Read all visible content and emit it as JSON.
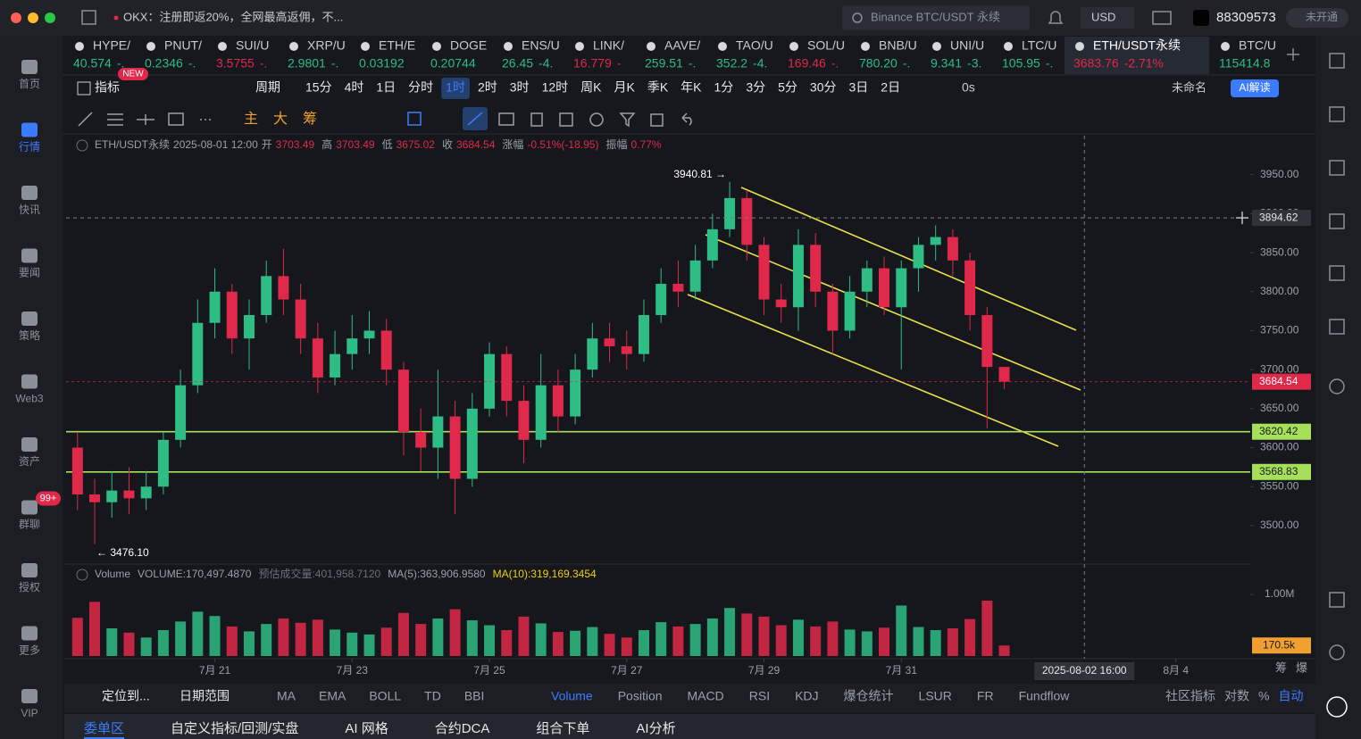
{
  "topbar": {
    "notice": "OKX：注册即返20%，全网最高返佣，不...",
    "search": "Binance BTC/USDT 永续",
    "currency": "USD",
    "account": "88309573",
    "badge": "未开通"
  },
  "sidebar": [
    {
      "label": "首页"
    },
    {
      "label": "行情",
      "active": true
    },
    {
      "label": "快讯"
    },
    {
      "label": "要闻"
    },
    {
      "label": "策略"
    },
    {
      "label": "Web3"
    },
    {
      "label": "资产"
    },
    {
      "label": "群聊",
      "badge": "99+"
    },
    {
      "label": "授权"
    },
    {
      "label": "更多"
    },
    {
      "label": "VIP"
    }
  ],
  "tickers": [
    {
      "name": "HYPE/",
      "price": "40.574",
      "change": "-.",
      "color": "#2ebd85"
    },
    {
      "name": "PNUT/",
      "price": "0.2346",
      "change": "-.",
      "color": "#2ebd85"
    },
    {
      "name": "SUI/U",
      "price": "3.5755",
      "change": "-.",
      "color": "#e0294a"
    },
    {
      "name": "XRP/U",
      "price": "2.9801",
      "change": "-.",
      "color": "#2ebd85"
    },
    {
      "name": "ETH/E",
      "price": "0.03192",
      "color": "#2ebd85"
    },
    {
      "name": "DOGE",
      "price": "0.20744",
      "color": "#2ebd85"
    },
    {
      "name": "ENS/U",
      "price": "26.45",
      "change": "-4.",
      "color": "#2ebd85"
    },
    {
      "name": "LINK/",
      "price": "16.779",
      "change": "-",
      "color": "#e0294a"
    },
    {
      "name": "AAVE/",
      "price": "259.51",
      "change": "-.",
      "color": "#2ebd85"
    },
    {
      "name": "TAO/U",
      "price": "352.2",
      "change": "-4.",
      "color": "#2ebd85"
    },
    {
      "name": "SOL/U",
      "price": "169.46",
      "change": "-.",
      "color": "#e0294a"
    },
    {
      "name": "BNB/U",
      "price": "780.20",
      "change": "-.",
      "color": "#2ebd85"
    },
    {
      "name": "UNI/U",
      "price": "9.341",
      "change": "-3.",
      "color": "#2ebd85"
    },
    {
      "name": "LTC/U",
      "price": "105.95",
      "change": "-.",
      "color": "#2ebd85"
    },
    {
      "name": "ETH/USDT永续",
      "price": "3683.76",
      "change": "-2.71%",
      "color": "#e0294a",
      "active": true
    },
    {
      "name": "BTC/U",
      "price": "115414.8",
      "color": "#2ebd85"
    }
  ],
  "toolbar": {
    "indicator": "指标",
    "new": "NEW",
    "period": "周期",
    "periods": [
      "15分",
      "4时",
      "1日",
      "分时",
      "1时",
      "2时",
      "3时",
      "12时",
      "周K",
      "月K",
      "季K",
      "年K",
      "1分",
      "3分",
      "5分",
      "30分",
      "3日",
      "2日"
    ],
    "active_period": "1时",
    "countdown": "0s",
    "layout": "未命名",
    "ai": "AI解读",
    "tools": [
      "主",
      "大",
      "筹"
    ]
  },
  "info": {
    "symbol": "ETH/USDT永续",
    "labels": [
      "开",
      "高",
      "低",
      "收",
      "涨幅",
      "振幅"
    ],
    "change": "-0.51%(-18.95)",
    "amplitude": "0.77%"
  },
  "volume_legend": [
    "Volume",
    "VOLUME:170,497.4870",
    "预估成交量:401,958.7120",
    "MA(5):363,906.9580",
    "MA(10):319,169.3454"
  ],
  "chart_data": {
    "type": "candlestick",
    "x": [
      "2025-07-19 00:00",
      "2025-07-19 06:00",
      "2025-07-19 12:00",
      "2025-07-19 18:00",
      "2025-07-20 00:00",
      "2025-07-20 06:00",
      "2025-07-20 12:00",
      "2025-07-20 18:00",
      "2025-07-21 00:00",
      "2025-07-21 06:00",
      "2025-07-21 12:00",
      "2025-07-21 18:00",
      "2025-07-22 00:00",
      "2025-07-22 06:00",
      "2025-07-22 12:00",
      "2025-07-22 18:00",
      "2025-07-23 00:00",
      "2025-07-23 06:00",
      "2025-07-23 12:00",
      "2025-07-23 18:00",
      "2025-07-24 00:00",
      "2025-07-24 06:00",
      "2025-07-24 12:00",
      "2025-07-24 18:00",
      "2025-07-25 00:00",
      "2025-07-25 06:00",
      "2025-07-25 12:00",
      "2025-07-25 18:00",
      "2025-07-26 00:00",
      "2025-07-26 06:00",
      "2025-07-26 12:00",
      "2025-07-26 18:00",
      "2025-07-27 00:00",
      "2025-07-27 06:00",
      "2025-07-27 12:00",
      "2025-07-27 18:00",
      "2025-07-28 00:00",
      "2025-07-28 06:00",
      "2025-07-28 12:00",
      "2025-07-28 18:00",
      "2025-07-29 00:00",
      "2025-07-29 06:00",
      "2025-07-29 12:00",
      "2025-07-29 18:00",
      "2025-07-30 00:00",
      "2025-07-30 06:00",
      "2025-07-30 12:00",
      "2025-07-30 18:00",
      "2025-07-31 00:00",
      "2025-07-31 06:00",
      "2025-07-31 12:00",
      "2025-07-31 18:00",
      "2025-08-01 00:00",
      "2025-08-01 06:00",
      "2025-08-01 12:00"
    ],
    "open": [
      3600,
      3540,
      3530,
      3545,
      3535,
      3550,
      3610,
      3680,
      3760,
      3800,
      3740,
      3770,
      3820,
      3790,
      3740,
      3690,
      3720,
      3740,
      3750,
      3700,
      3620,
      3600,
      3640,
      3560,
      3650,
      3720,
      3660,
      3610,
      3680,
      3640,
      3700,
      3740,
      3730,
      3720,
      3770,
      3810,
      3800,
      3840,
      3880,
      3920,
      3860,
      3790,
      3780,
      3860,
      3800,
      3750,
      3800,
      3830,
      3780,
      3830,
      3860,
      3870,
      3840,
      3770,
      3703.49
    ],
    "high": [
      3620,
      3560,
      3570,
      3575,
      3570,
      3620,
      3700,
      3790,
      3830,
      3810,
      3790,
      3840,
      3855,
      3810,
      3760,
      3750,
      3770,
      3775,
      3765,
      3710,
      3650,
      3700,
      3660,
      3670,
      3735,
      3730,
      3680,
      3720,
      3700,
      3720,
      3760,
      3760,
      3750,
      3790,
      3830,
      3840,
      3860,
      3900,
      3940.81,
      3930,
      3870,
      3810,
      3880,
      3875,
      3810,
      3820,
      3840,
      3845,
      3840,
      3870,
      3885,
      3880,
      3850,
      3780,
      3703.49
    ],
    "low": [
      3520,
      3476.1,
      3510,
      3515,
      3520,
      3540,
      3600,
      3670,
      3740,
      3720,
      3700,
      3760,
      3770,
      3720,
      3670,
      3680,
      3700,
      3720,
      3680,
      3590,
      3570,
      3560,
      3515,
      3550,
      3640,
      3640,
      3580,
      3600,
      3620,
      3630,
      3690,
      3710,
      3700,
      3710,
      3760,
      3780,
      3790,
      3830,
      3870,
      3840,
      3770,
      3760,
      3750,
      3780,
      3720,
      3740,
      3780,
      3770,
      3700,
      3800,
      3840,
      3820,
      3750,
      3625,
      3675.02
    ],
    "close": [
      3540,
      3530,
      3545,
      3535,
      3550,
      3610,
      3680,
      3760,
      3800,
      3740,
      3770,
      3820,
      3790,
      3740,
      3690,
      3720,
      3740,
      3750,
      3700,
      3620,
      3600,
      3640,
      3560,
      3650,
      3720,
      3660,
      3610,
      3680,
      3640,
      3700,
      3740,
      3730,
      3720,
      3770,
      3810,
      3800,
      3840,
      3880,
      3920,
      3860,
      3790,
      3780,
      3860,
      3800,
      3750,
      3800,
      3830,
      3780,
      3830,
      3860,
      3870,
      3840,
      3770,
      3703.49,
      3684.54
    ],
    "volume": [
      620000,
      880000,
      450000,
      380000,
      300000,
      420000,
      560000,
      720000,
      650000,
      480000,
      400000,
      520000,
      610000,
      540000,
      590000,
      430000,
      380000,
      350000,
      460000,
      700000,
      520000,
      610000,
      760000,
      580000,
      500000,
      420000,
      640000,
      530000,
      390000,
      410000,
      470000,
      360000,
      300000,
      420000,
      550000,
      480000,
      520000,
      610000,
      780000,
      690000,
      640000,
      500000,
      590000,
      480000,
      560000,
      430000,
      400000,
      460000,
      820000,
      470000,
      420000,
      450000,
      600000,
      900000,
      170497.487
    ],
    "xlim": [
      "2025-07-18 20:00",
      "2025-08-05 02:00"
    ],
    "xticks": [
      {
        "value": "2025-07-21 00:00",
        "label": "7月 21"
      },
      {
        "value": "2025-07-23 00:00",
        "label": "7月 23"
      },
      {
        "value": "2025-07-25 00:00",
        "label": "7月 25"
      },
      {
        "value": "2025-07-27 00:00",
        "label": "7月 27"
      },
      {
        "value": "2025-07-29 00:00",
        "label": "7月 29"
      },
      {
        "value": "2025-07-31 00:00",
        "label": "7月 31"
      },
      {
        "value": "2025-08-04 00:00",
        "label": "8月 4"
      }
    ],
    "ylim": [
      3453,
      4000
    ],
    "yticks": [
      {
        "value": 3500,
        "label": "3500.00"
      },
      {
        "value": 3550,
        "label": "3550.00"
      },
      {
        "value": 3600,
        "label": "3600.00"
      },
      {
        "value": 3650,
        "label": "3650.00"
      },
      {
        "value": 3700,
        "label": "3700.00"
      },
      {
        "value": 3750,
        "label": "3750.00"
      },
      {
        "value": 3800,
        "label": "3800.00"
      },
      {
        "value": 3850,
        "label": "3850.00"
      },
      {
        "value": 3900,
        "label": "3900.00"
      },
      {
        "value": 3950,
        "label": "3950.00"
      }
    ],
    "volume_ylim": [
      0,
      1160000
    ],
    "volume_yticks": [
      {
        "value": 1000000,
        "label": "1.00M"
      }
    ],
    "volume_marker": {
      "value": 170497.487,
      "label": "170.5k"
    },
    "up_color": "#2ebd85",
    "down_color": "#e0294a",
    "price_lines": [
      {
        "value": 3620.42,
        "color": "#a6e05a"
      },
      {
        "value": 3568.83,
        "color": "#a6e05a"
      }
    ],
    "crosshair": {
      "value": 3894.62,
      "x": "2025-08-02 16:00"
    },
    "annotations": [
      {
        "text": "3940.81 →",
        "value": 3940.81,
        "x": "2025-07-28 12:00",
        "side": "left"
      },
      {
        "text": "← 3476.10",
        "value": 3476.1,
        "x": "2025-07-19 06:00",
        "side": "right"
      }
    ]
  },
  "bottom_toolbar": {
    "locate": "定位到...",
    "range": "日期范围",
    "main": [
      "MA",
      "EMA",
      "BOLL",
      "TD",
      "BBI"
    ],
    "sub": [
      "Volume",
      "Position",
      "MACD",
      "RSI",
      "KDJ",
      "爆仓统计",
      "LSUR",
      "FR",
      "Fundflow"
    ],
    "active": "Volume",
    "right": [
      "社区指标",
      "对数",
      "%",
      "自动"
    ],
    "corner": [
      "筹",
      "爆"
    ]
  },
  "tabs": [
    "委单区",
    "自定义指标/回测/实盘",
    "AI 网格",
    "合约DCA",
    "组合下单",
    "AI分析"
  ]
}
